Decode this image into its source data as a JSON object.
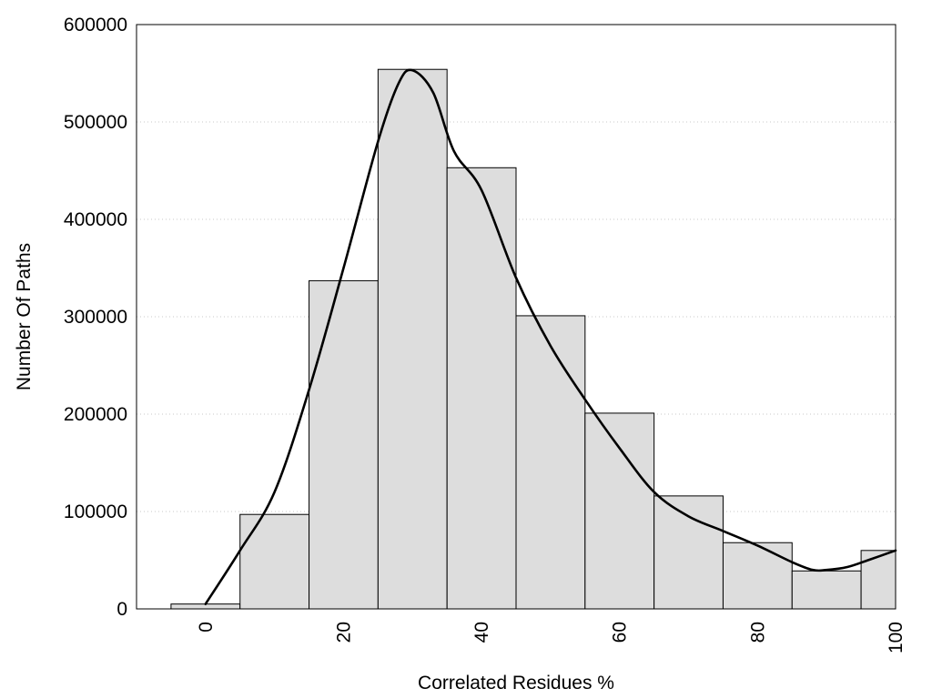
{
  "chart_data": {
    "type": "bar",
    "title": "",
    "xlabel": "Correlated Residues %",
    "ylabel": "Number Of Paths",
    "xlim": [
      -10,
      100
    ],
    "ylim": [
      0,
      600000
    ],
    "grid": true,
    "bin_width": 10,
    "bins": [
      {
        "center": 0,
        "value": 5000
      },
      {
        "center": 10,
        "value": 97000
      },
      {
        "center": 20,
        "value": 337000
      },
      {
        "center": 30,
        "value": 554000
      },
      {
        "center": 40,
        "value": 453000
      },
      {
        "center": 50,
        "value": 301000
      },
      {
        "center": 60,
        "value": 201000
      },
      {
        "center": 70,
        "value": 116000
      },
      {
        "center": 80,
        "value": 68000
      },
      {
        "center": 90,
        "value": 39000
      },
      {
        "center": 100,
        "value": 60000
      }
    ],
    "x_ticks": [
      "0",
      "20",
      "40",
      "60",
      "80",
      "100"
    ],
    "y_ticks": [
      "0",
      "100000",
      "200000",
      "300000",
      "400000",
      "500000",
      "600000"
    ],
    "curve": {
      "type": "line",
      "x": [
        0,
        5,
        10,
        15,
        20,
        25,
        28,
        30,
        33,
        36,
        40,
        45,
        50,
        55,
        60,
        65,
        70,
        75,
        80,
        85,
        88,
        90,
        93,
        96,
        100
      ],
      "y": [
        5000,
        60000,
        120000,
        225000,
        350000,
        480000,
        540000,
        553000,
        530000,
        470000,
        430000,
        340000,
        270000,
        215000,
        165000,
        120000,
        95000,
        80000,
        65000,
        48000,
        40000,
        40000,
        43000,
        50000,
        60000
      ]
    }
  }
}
